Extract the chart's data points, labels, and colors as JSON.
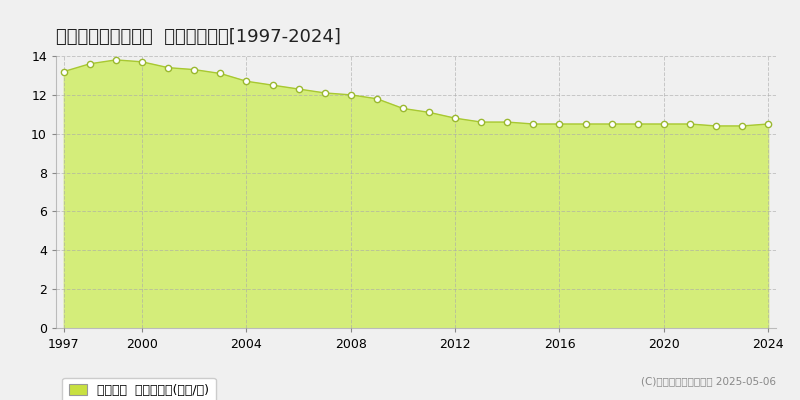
{
  "title": "北群馬郡吉岡町漆原  基準地価推移[1997-2024]",
  "years": [
    1997,
    1998,
    1999,
    2000,
    2001,
    2002,
    2003,
    2004,
    2005,
    2006,
    2007,
    2008,
    2009,
    2010,
    2011,
    2012,
    2013,
    2014,
    2015,
    2016,
    2017,
    2018,
    2019,
    2020,
    2021,
    2022,
    2023,
    2024
  ],
  "values": [
    13.2,
    13.6,
    13.8,
    13.7,
    13.4,
    13.3,
    13.1,
    12.7,
    12.5,
    12.3,
    12.1,
    12.0,
    11.8,
    11.3,
    11.1,
    10.8,
    10.6,
    10.6,
    10.5,
    10.5,
    10.5,
    10.5,
    10.5,
    10.5,
    10.5,
    10.4,
    10.4,
    10.5
  ],
  "fill_color": "#d4ed7a",
  "line_color": "#a8c832",
  "marker_color": "#ffffff",
  "marker_edge_color": "#9ab830",
  "background_color": "#f0f0f0",
  "plot_bg_color": "#f0f0f0",
  "grid_color": "#aaaaaa",
  "ylim": [
    0,
    14
  ],
  "yticks": [
    0,
    2,
    4,
    6,
    8,
    10,
    12,
    14
  ],
  "xticks": [
    1997,
    2000,
    2004,
    2008,
    2012,
    2016,
    2020,
    2024
  ],
  "legend_label": "基準地価  平均坪単価(万円/坪)",
  "legend_color": "#c8e040",
  "watermark": "(C)土地価格ドットコム 2025-05-06",
  "title_fontsize": 13,
  "tick_fontsize": 9,
  "legend_fontsize": 9
}
